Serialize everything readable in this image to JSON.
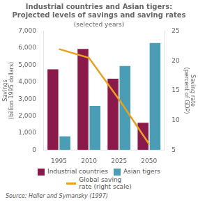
{
  "chart_data": {
    "type": "bar",
    "title": [
      "Industrial countries and Asian tigers:",
      "Projected levels of savings and saving rates"
    ],
    "subtitle": "(selected years)",
    "ylabel": [
      "Savings",
      "(billion 1995 dollars)"
    ],
    "y2label": [
      "Saving rate",
      "(percent of GDP)"
    ],
    "source": "Source:  Heller and Symansky (1997)",
    "categories": [
      "1995",
      "2010",
      "2025",
      "2050"
    ],
    "series": [
      {
        "name": "Industrial countries",
        "color": "#8B1A4A",
        "values": [
          4750,
          5950,
          4200,
          1600
        ]
      },
      {
        "name": "Asian tigers",
        "color": "#4A9DB5",
        "values": [
          800,
          2600,
          4950,
          6300
        ]
      },
      {
        "name": "Global saving\nrate (right scale)",
        "type": "line",
        "axis": "y2",
        "color": "#E8A020",
        "values": [
          22,
          20.5,
          13.5,
          6
        ]
      }
    ],
    "ylim": [
      0,
      7000
    ],
    "yticks": [
      0,
      {
        "value": 1000,
        "label": "1,000"
      },
      {
        "value": 2000,
        "label": "2,000"
      },
      {
        "value": 3000,
        "label": "3,000"
      },
      {
        "value": 4000,
        "label": "4,000"
      },
      {
        "value": 5000,
        "label": "5,000"
      },
      {
        "value": 6000,
        "label": "6,000"
      },
      {
        "value": 7000,
        "label": "7,000"
      }
    ],
    "y2lim": [
      5,
      25
    ],
    "y2ticks": [
      5,
      10,
      15,
      20,
      25
    ],
    "grid": false,
    "legend": "bottom"
  }
}
